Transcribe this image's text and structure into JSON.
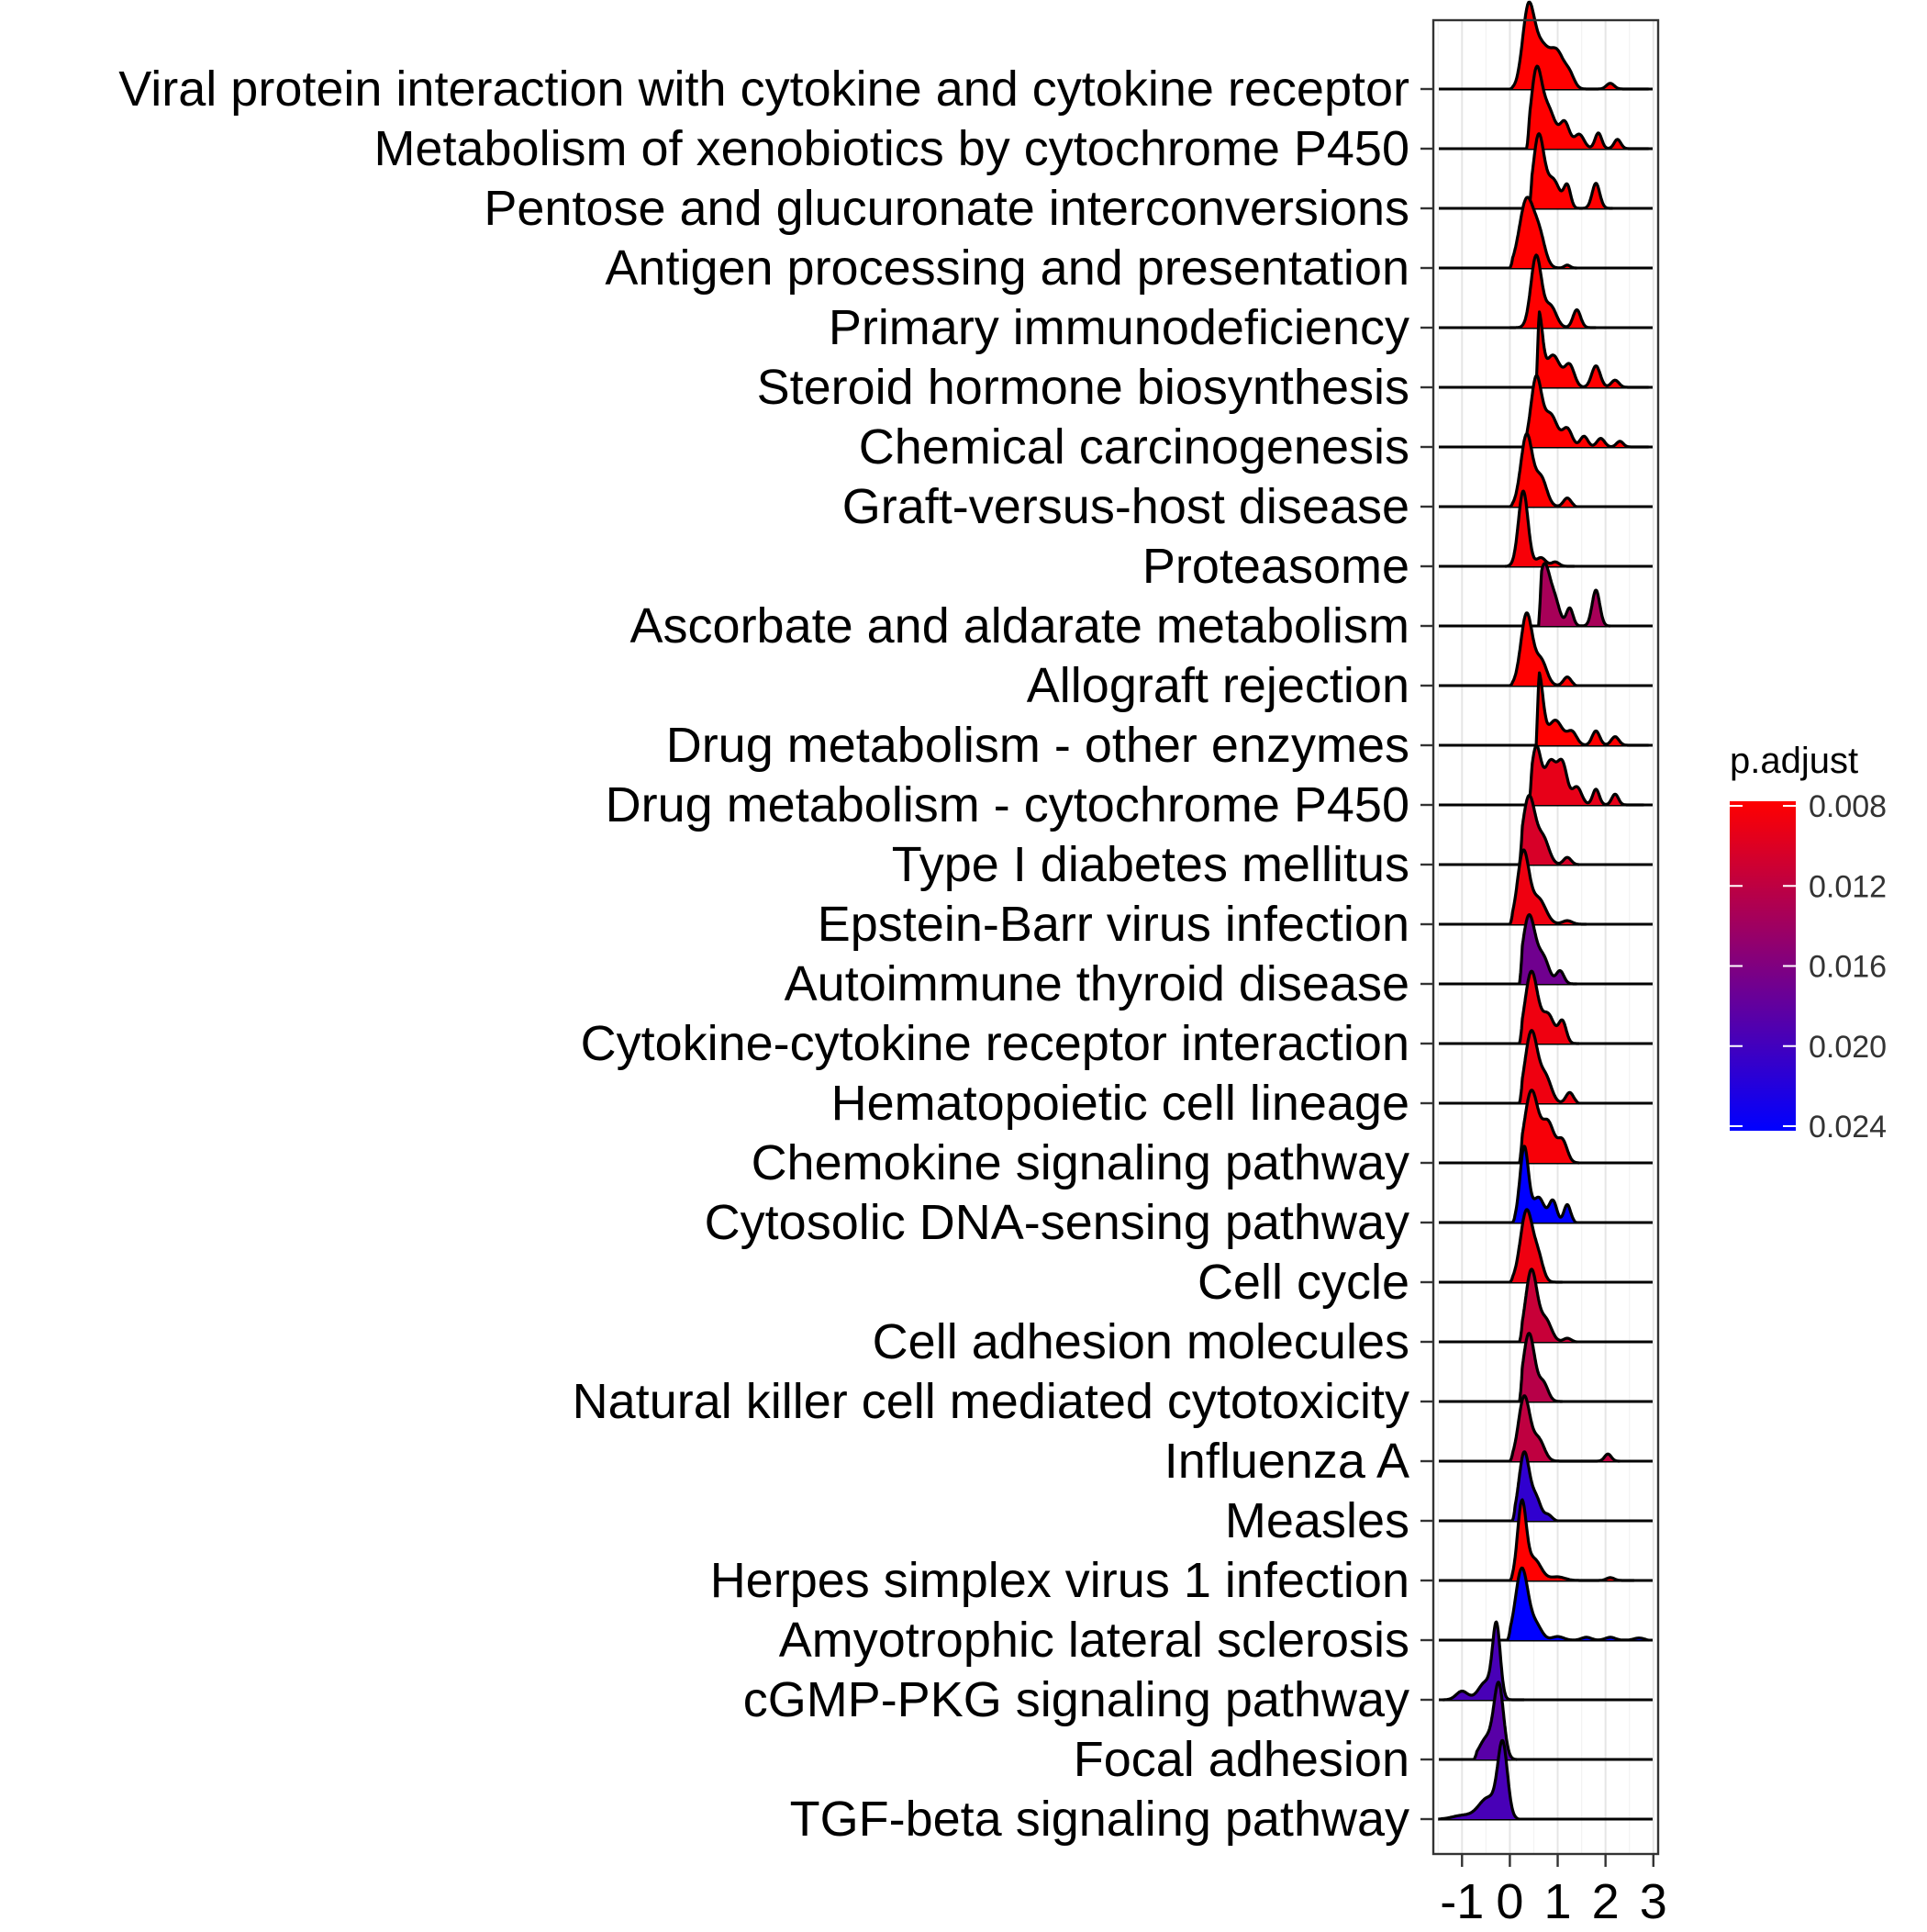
{
  "chart_data": {
    "type": "ridgeline",
    "categories": [
      "Viral protein interaction with cytokine and cytokine receptor",
      "Metabolism of xenobiotics by cytochrome P450",
      "Pentose and glucuronate interconversions",
      "Antigen processing and presentation",
      "Primary immunodeficiency",
      "Steroid hormone biosynthesis",
      "Chemical carcinogenesis",
      "Graft-versus-host disease",
      "Proteasome",
      "Ascorbate and aldarate metabolism",
      "Allograft rejection",
      "Drug metabolism - other enzymes",
      "Drug metabolism - cytochrome P450",
      "Type I diabetes mellitus",
      "Epstein-Barr virus infection",
      "Autoimmune thyroid disease",
      "Cytokine-cytokine receptor interaction",
      "Hematopoietic cell lineage",
      "Chemokine signaling pathway",
      "Cytosolic DNA-sensing pathway",
      "Cell cycle",
      "Cell adhesion molecules",
      "Natural killer cell mediated cytotoxicity",
      "Influenza A",
      "Measles",
      "Herpes simplex virus 1 infection",
      "Amyotrophic lateral sclerosis",
      "cGMP-PKG signaling pathway",
      "Focal adhesion",
      "TGF-beta signaling pathway"
    ],
    "p_adjust": [
      0.008,
      0.008,
      0.008,
      0.008,
      0.008,
      0.008,
      0.008,
      0.008,
      0.0085,
      0.0135,
      0.008,
      0.008,
      0.0095,
      0.0105,
      0.009,
      0.017,
      0.009,
      0.009,
      0.0085,
      0.024,
      0.009,
      0.0115,
      0.0125,
      0.012,
      0.021,
      0.008,
      0.024,
      0.0195,
      0.0185,
      0.0195
    ],
    "ridges": [
      {
        "xmin": 0.0,
        "xmax": 2.9,
        "peaks": [
          [
            0.38,
            1.0,
            0.12
          ],
          [
            0.65,
            0.6,
            0.18
          ],
          [
            1.0,
            0.45,
            0.14
          ],
          [
            1.25,
            0.18,
            0.1
          ],
          [
            2.1,
            0.08,
            0.08
          ]
        ]
      },
      {
        "xmin": 0.35,
        "xmax": 2.9,
        "peaks": [
          [
            0.55,
            1.0,
            0.11
          ],
          [
            0.8,
            0.55,
            0.15
          ],
          [
            1.15,
            0.35,
            0.1
          ],
          [
            1.45,
            0.2,
            0.1
          ],
          [
            1.85,
            0.22,
            0.07
          ],
          [
            2.25,
            0.13,
            0.07
          ]
        ]
      },
      {
        "xmin": 0.4,
        "xmax": 2.15,
        "peaks": [
          [
            0.6,
            1.0,
            0.11
          ],
          [
            0.9,
            0.4,
            0.14
          ],
          [
            1.2,
            0.3,
            0.07
          ],
          [
            1.8,
            0.35,
            0.08
          ]
        ]
      },
      {
        "xmin": 0.0,
        "xmax": 1.4,
        "peaks": [
          [
            0.35,
            0.95,
            0.15
          ],
          [
            0.62,
            0.4,
            0.12
          ],
          [
            1.2,
            0.04,
            0.06
          ]
        ]
      },
      {
        "xmin": 0.0,
        "xmax": 1.8,
        "peaks": [
          [
            0.55,
            1.0,
            0.11
          ],
          [
            0.85,
            0.3,
            0.12
          ],
          [
            1.4,
            0.25,
            0.08
          ]
        ]
      },
      {
        "xmin": 0.55,
        "xmax": 2.9,
        "peaks": [
          [
            0.6,
            1.0,
            0.08
          ],
          [
            0.9,
            0.45,
            0.15
          ],
          [
            1.25,
            0.3,
            0.1
          ],
          [
            1.8,
            0.3,
            0.09
          ],
          [
            2.2,
            0.1,
            0.08
          ]
        ]
      },
      {
        "xmin": 0.3,
        "xmax": 2.9,
        "peaks": [
          [
            0.55,
            0.95,
            0.11
          ],
          [
            0.85,
            0.45,
            0.14
          ],
          [
            1.2,
            0.25,
            0.1
          ],
          [
            1.55,
            0.15,
            0.08
          ],
          [
            1.9,
            0.12,
            0.08
          ],
          [
            2.3,
            0.08,
            0.07
          ]
        ]
      },
      {
        "xmin": 0.0,
        "xmax": 1.4,
        "peaks": [
          [
            0.35,
            1.0,
            0.12
          ],
          [
            0.65,
            0.4,
            0.12
          ],
          [
            1.2,
            0.12,
            0.08
          ]
        ]
      },
      {
        "xmin": -0.1,
        "xmax": 1.35,
        "peaks": [
          [
            0.28,
            1.05,
            0.1
          ],
          [
            0.65,
            0.12,
            0.1
          ],
          [
            0.95,
            0.06,
            0.08
          ]
        ]
      },
      {
        "xmin": 0.6,
        "xmax": 2.1,
        "peaks": [
          [
            0.72,
            0.85,
            0.12
          ],
          [
            0.95,
            0.3,
            0.1
          ],
          [
            1.25,
            0.25,
            0.07
          ],
          [
            1.8,
            0.5,
            0.08
          ]
        ]
      },
      {
        "xmin": 0.0,
        "xmax": 1.4,
        "peaks": [
          [
            0.35,
            1.0,
            0.12
          ],
          [
            0.65,
            0.35,
            0.12
          ],
          [
            1.2,
            0.12,
            0.08
          ]
        ]
      },
      {
        "xmin": 0.55,
        "xmax": 2.9,
        "peaks": [
          [
            0.6,
            1.0,
            0.09
          ],
          [
            0.95,
            0.35,
            0.15
          ],
          [
            1.3,
            0.18,
            0.1
          ],
          [
            1.8,
            0.2,
            0.08
          ],
          [
            2.2,
            0.12,
            0.08
          ]
        ]
      },
      {
        "xmin": 0.4,
        "xmax": 2.8,
        "peaks": [
          [
            0.55,
            0.8,
            0.1
          ],
          [
            0.85,
            0.6,
            0.12
          ],
          [
            1.1,
            0.55,
            0.1
          ],
          [
            1.4,
            0.25,
            0.1
          ],
          [
            1.8,
            0.22,
            0.07
          ],
          [
            2.2,
            0.15,
            0.07
          ]
        ]
      },
      {
        "xmin": 0.2,
        "xmax": 1.45,
        "peaks": [
          [
            0.4,
            0.95,
            0.13
          ],
          [
            0.7,
            0.35,
            0.12
          ],
          [
            1.2,
            0.1,
            0.08
          ]
        ]
      },
      {
        "xmin": 0.0,
        "xmax": 1.6,
        "peaks": [
          [
            0.28,
            1.0,
            0.12
          ],
          [
            0.6,
            0.35,
            0.15
          ],
          [
            1.2,
            0.05,
            0.1
          ]
        ]
      },
      {
        "xmin": 0.2,
        "xmax": 1.4,
        "peaks": [
          [
            0.4,
            0.95,
            0.13
          ],
          [
            0.7,
            0.35,
            0.12
          ],
          [
            1.05,
            0.18,
            0.08
          ]
        ]
      },
      {
        "xmin": 0.2,
        "xmax": 1.45,
        "peaks": [
          [
            0.45,
            1.0,
            0.13
          ],
          [
            0.8,
            0.4,
            0.13
          ],
          [
            1.1,
            0.3,
            0.08
          ],
          [
            2.1,
            0.05,
            0.08
          ]
        ]
      },
      {
        "xmin": 0.2,
        "xmax": 1.45,
        "peaks": [
          [
            0.45,
            1.0,
            0.13
          ],
          [
            0.75,
            0.35,
            0.12
          ],
          [
            1.25,
            0.15,
            0.08
          ]
        ]
      },
      {
        "xmin": 0.2,
        "xmax": 1.45,
        "peaks": [
          [
            0.45,
            1.0,
            0.14
          ],
          [
            0.8,
            0.55,
            0.13
          ],
          [
            1.1,
            0.3,
            0.1
          ],
          [
            2.1,
            0.05,
            0.08
          ]
        ]
      },
      {
        "xmin": 0.05,
        "xmax": 1.4,
        "peaks": [
          [
            0.3,
            1.05,
            0.09
          ],
          [
            0.6,
            0.35,
            0.12
          ],
          [
            0.9,
            0.3,
            0.08
          ],
          [
            1.2,
            0.25,
            0.07
          ]
        ]
      },
      {
        "xmin": 0.0,
        "xmax": 1.1,
        "peaks": [
          [
            0.35,
            1.0,
            0.13
          ],
          [
            0.6,
            0.3,
            0.1
          ]
        ]
      },
      {
        "xmin": 0.2,
        "xmax": 1.4,
        "peaks": [
          [
            0.45,
            1.0,
            0.12
          ],
          [
            0.75,
            0.3,
            0.12
          ],
          [
            1.2,
            0.05,
            0.08
          ]
        ]
      },
      {
        "xmin": 0.2,
        "xmax": 1.1,
        "peaks": [
          [
            0.4,
            0.95,
            0.12
          ],
          [
            0.7,
            0.25,
            0.1
          ]
        ]
      },
      {
        "xmin": 0.0,
        "xmax": 2.3,
        "peaks": [
          [
            0.3,
            0.9,
            0.12
          ],
          [
            0.6,
            0.3,
            0.12
          ],
          [
            2.05,
            0.1,
            0.07
          ]
        ]
      },
      {
        "xmin": 0.05,
        "xmax": 1.0,
        "peaks": [
          [
            0.3,
            0.95,
            0.11
          ],
          [
            0.55,
            0.3,
            0.1
          ],
          [
            0.8,
            0.08,
            0.08
          ]
        ]
      },
      {
        "xmin": 0.0,
        "xmax": 2.6,
        "peaks": [
          [
            0.25,
            1.05,
            0.09
          ],
          [
            0.5,
            0.3,
            0.15
          ],
          [
            1.0,
            0.05,
            0.15
          ],
          [
            2.1,
            0.04,
            0.08
          ]
        ]
      },
      {
        "xmin": -0.05,
        "xmax": 2.9,
        "peaks": [
          [
            0.25,
            1.0,
            0.13
          ],
          [
            0.55,
            0.2,
            0.12
          ],
          [
            1.0,
            0.05,
            0.12
          ],
          [
            1.6,
            0.04,
            0.1
          ],
          [
            2.1,
            0.04,
            0.1
          ],
          [
            2.7,
            0.03,
            0.1
          ]
        ]
      },
      {
        "xmin": -1.4,
        "xmax": 0.3,
        "peaks": [
          [
            -0.28,
            1.0,
            0.08
          ],
          [
            -0.5,
            0.25,
            0.15
          ],
          [
            -1.0,
            0.12,
            0.12
          ]
        ]
      },
      {
        "xmin": -0.75,
        "xmax": 0.15,
        "peaks": [
          [
            -0.23,
            1.0,
            0.1
          ],
          [
            -0.48,
            0.3,
            0.15
          ]
        ]
      },
      {
        "xmin": -1.5,
        "xmax": 0.2,
        "peaks": [
          [
            -0.15,
            1.0,
            0.1
          ],
          [
            -0.45,
            0.3,
            0.2
          ],
          [
            -1.0,
            0.05,
            0.2
          ]
        ]
      }
    ],
    "xlim": [
      -1.6,
      3.1
    ],
    "x_ticks": [
      -1,
      0,
      1,
      2,
      3
    ],
    "x_tick_labels": [
      "-1",
      "0",
      "1",
      "2",
      "3"
    ],
    "colorbar": {
      "title": "p.adjust",
      "ticks": [
        0.008,
        0.012,
        0.016,
        0.02,
        0.024
      ],
      "tick_labels": [
        "0.008",
        "0.012",
        "0.016",
        "0.020",
        "0.024"
      ],
      "low_color": "#ff0000",
      "high_color": "#0000ff"
    },
    "grid": true,
    "legend_position": "right"
  }
}
